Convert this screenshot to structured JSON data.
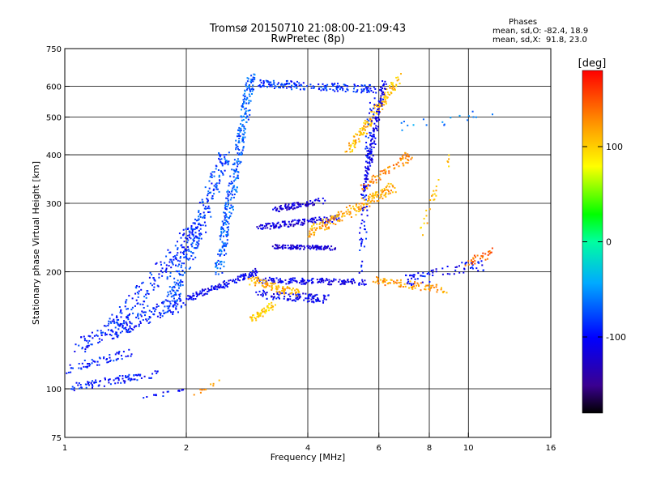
{
  "chart_data": {
    "type": "scatter",
    "title": "Tromsø 20150710 21:08:00-21:09:43",
    "subtitle": "RwPretec (8p)",
    "stats": {
      "heading": "Phases",
      "o_mode": "mean, sd,O: -82.4, 18.9",
      "x_mode": "mean, sd,X:  91.8, 23.0"
    },
    "xlabel": "Frequency [MHz]",
    "ylabel": "Stationary phase Virtual Height [km]",
    "x_scale": "log",
    "y_scale": "log",
    "xlim": [
      1,
      16
    ],
    "ylim": [
      75,
      750
    ],
    "x_ticks": [
      1,
      2,
      4,
      6,
      8,
      10,
      16
    ],
    "x_tick_labels": [
      "1",
      "2",
      "4",
      "6",
      "8",
      "10",
      "16"
    ],
    "y_ticks": [
      75,
      100,
      200,
      300,
      400,
      500,
      600,
      750
    ],
    "y_tick_labels": [
      "75",
      "100",
      "200",
      "300",
      "400",
      "500",
      "600",
      "750"
    ],
    "grid": true,
    "colorbar": {
      "label": "[deg]",
      "range": [
        -180,
        180
      ],
      "ticks": [
        -100,
        0,
        100
      ],
      "tick_labels": [
        "-100",
        "0",
        "100"
      ],
      "colormap": "rainbow"
    },
    "traces": [
      {
        "name": "",
        "f_start": 1.02,
        "f_end": 1.7,
        "h_start": 100,
        "h_end": 110,
        "phase": -95,
        "count": 90,
        "spread": 0.04
      },
      {
        "name": "",
        "f_start": 1.0,
        "f_end": 1.45,
        "h_start": 112,
        "h_end": 124,
        "phase": -92,
        "count": 60,
        "spread": 0.04
      },
      {
        "name": "",
        "f_start": 1.1,
        "f_end": 2.0,
        "h_start": 130,
        "h_end": 170,
        "phase": -92,
        "count": 170,
        "spread": 0.08
      },
      {
        "name": "",
        "f_start": 1.3,
        "f_end": 2.2,
        "h_start": 140,
        "h_end": 270,
        "phase": -88,
        "count": 200,
        "spread": 0.1
      },
      {
        "name": "",
        "f_start": 1.8,
        "f_end": 2.5,
        "h_start": 160,
        "h_end": 400,
        "phase": -80,
        "count": 260,
        "spread": 0.07
      },
      {
        "name": "",
        "f_start": 2.4,
        "f_end": 2.9,
        "h_start": 200,
        "h_end": 640,
        "phase": -70,
        "count": 320,
        "spread": 0.05
      },
      {
        "name": "",
        "f_start": 2.0,
        "f_end": 3.0,
        "h_start": 170,
        "h_end": 200,
        "phase": -105,
        "count": 130,
        "spread": 0.03
      },
      {
        "name": "",
        "f_start": 3.0,
        "f_end": 5.8,
        "h_start": 610,
        "h_end": 590,
        "phase": -85,
        "count": 170,
        "spread": 0.04
      },
      {
        "name": "",
        "f_start": 3.0,
        "f_end": 4.8,
        "h_start": 260,
        "h_end": 275,
        "phase": -115,
        "count": 140,
        "spread": 0.03
      },
      {
        "name": "",
        "f_start": 3.3,
        "f_end": 4.7,
        "h_start": 232,
        "h_end": 230,
        "phase": -118,
        "count": 110,
        "spread": 0.02
      },
      {
        "name": "",
        "f_start": 3.3,
        "f_end": 4.4,
        "h_start": 290,
        "h_end": 305,
        "phase": -118,
        "count": 80,
        "spread": 0.03
      },
      {
        "name": "",
        "f_start": 3.0,
        "f_end": 5.6,
        "h_start": 190,
        "h_end": 188,
        "phase": -112,
        "count": 150,
        "spread": 0.03
      },
      {
        "name": "",
        "f_start": 3.0,
        "f_end": 4.5,
        "h_start": 175,
        "h_end": 170,
        "phase": -105,
        "count": 110,
        "spread": 0.04
      },
      {
        "name": "",
        "f_start": 2.9,
        "f_end": 3.8,
        "h_start": 190,
        "h_end": 175,
        "phase": 115,
        "count": 90,
        "spread": 0.04
      },
      {
        "name": "",
        "f_start": 2.9,
        "f_end": 3.3,
        "h_start": 150,
        "h_end": 165,
        "phase": 105,
        "count": 55,
        "spread": 0.03
      },
      {
        "name": "",
        "f_start": 4.0,
        "f_end": 6.5,
        "h_start": 250,
        "h_end": 330,
        "phase": 120,
        "count": 180,
        "spread": 0.05
      },
      {
        "name": "",
        "f_start": 5.0,
        "f_end": 6.8,
        "h_start": 400,
        "h_end": 640,
        "phase": 110,
        "count": 150,
        "spread": 0.04
      },
      {
        "name": "",
        "f_start": 5.5,
        "f_end": 6.2,
        "h_start": 320,
        "h_end": 620,
        "phase": -110,
        "count": 140,
        "spread": 0.03
      },
      {
        "name": "",
        "f_start": 5.4,
        "f_end": 5.8,
        "h_start": 200,
        "h_end": 600,
        "phase": -95,
        "count": 80,
        "spread": 0.04
      },
      {
        "name": "",
        "f_start": 5.5,
        "f_end": 7.2,
        "h_start": 330,
        "h_end": 400,
        "phase": 130,
        "count": 70,
        "spread": 0.04
      },
      {
        "name": "",
        "f_start": 5.8,
        "f_end": 8.8,
        "h_start": 190,
        "h_end": 180,
        "phase": 125,
        "count": 90,
        "spread": 0.04
      },
      {
        "name": "",
        "f_start": 7.0,
        "f_end": 11.0,
        "h_start": 190,
        "h_end": 210,
        "phase": -100,
        "count": 70,
        "spread": 0.06
      },
      {
        "name": "",
        "f_start": 10.0,
        "f_end": 11.5,
        "h_start": 210,
        "h_end": 225,
        "phase": 140,
        "count": 30,
        "spread": 0.04
      },
      {
        "name": "",
        "f_start": 7.5,
        "f_end": 9.0,
        "h_start": 250,
        "h_end": 400,
        "phase": 110,
        "count": 25,
        "spread": 0.05
      },
      {
        "name": "",
        "f_start": 6.8,
        "f_end": 12.0,
        "h_start": 470,
        "h_end": 520,
        "phase": -60,
        "count": 18,
        "spread": 0.05
      },
      {
        "name": "",
        "f_start": 1.5,
        "f_end": 2.2,
        "h_start": 95,
        "h_end": 100,
        "phase": -100,
        "count": 15,
        "spread": 0.02
      },
      {
        "name": "",
        "f_start": 2.0,
        "f_end": 2.6,
        "h_start": 95,
        "h_end": 108,
        "phase": 130,
        "count": 10,
        "spread": 0.02
      }
    ]
  }
}
